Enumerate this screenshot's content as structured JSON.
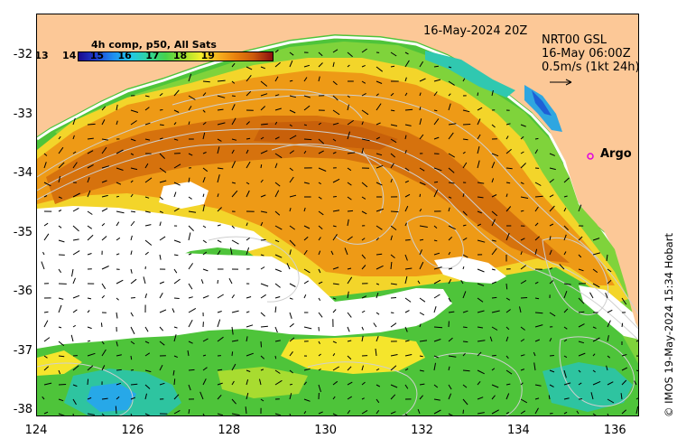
{
  "map": {
    "date_label": "16-May-2024 20Z",
    "colorbar": {
      "title": "4h comp, p50, All Sats",
      "ticks": [
        "13",
        "14",
        "15",
        "16",
        "17",
        "18",
        "19"
      ],
      "range": [
        13,
        20
      ]
    },
    "current_info": {
      "line1": "NRT00 GSL",
      "line2": "16-May 06:00Z",
      "line3": "0.5m/s (1kt 24h)"
    },
    "argo_label": "Argo",
    "x_ticks": [
      "124",
      "126",
      "128",
      "130",
      "132",
      "134",
      "136"
    ],
    "y_ticks": [
      "-32",
      "-33",
      "-34",
      "-35",
      "-36",
      "-37",
      "-38"
    ],
    "lon_range": [
      124,
      136.5
    ],
    "lat_range": [
      -38.1,
      -31.3
    ],
    "copyright": "© IMOS 19-May-2024 15:34 Hobart",
    "colors": {
      "land": "#fcc897",
      "argo": "#e000e0",
      "contours": "#cfcfcf"
    }
  }
}
